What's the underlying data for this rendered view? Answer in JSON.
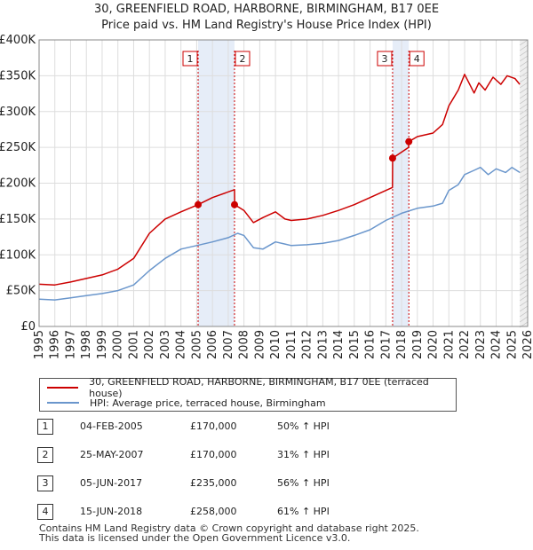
{
  "title_line1": "30, GREENFIELD ROAD, HARBORNE, BIRMINGHAM, B17 0EE",
  "title_line2": "Price paid vs. HM Land Registry's House Price Index (HPI)",
  "colors": {
    "property": "#cc0000",
    "hpi": "#6a96cc",
    "band": "#e6edf8",
    "grid": "#dddddd"
  },
  "chart_data": {
    "type": "line",
    "xlim": [
      1995,
      2026
    ],
    "ylim": [
      0,
      400000
    ],
    "ytick_values": [
      0,
      50000,
      100000,
      150000,
      200000,
      250000,
      300000,
      350000,
      400000
    ],
    "yticks": [
      "£0",
      "£50K",
      "£100K",
      "£150K",
      "£200K",
      "£250K",
      "£300K",
      "£350K",
      "£400K"
    ],
    "xticks": [
      "1995",
      "1996",
      "1997",
      "1998",
      "1999",
      "2000",
      "2001",
      "2002",
      "2003",
      "2004",
      "2005",
      "2006",
      "2007",
      "2008",
      "2009",
      "2010",
      "2011",
      "2012",
      "2013",
      "2014",
      "2015",
      "2016",
      "2017",
      "2018",
      "2019",
      "2020",
      "2021",
      "2022",
      "2023",
      "2024",
      "2025",
      "2026"
    ],
    "series": [
      {
        "name": "30, GREENFIELD ROAD, HARBORNE, BIRMINGHAM, B17 0EE (terraced house)",
        "color": "#cc0000",
        "x": [
          1995,
          1996,
          1997,
          1998,
          1999,
          2000,
          2001,
          2002,
          2003,
          2004,
          2005.09,
          2006,
          2007.4,
          2007.41,
          2008,
          2008.6,
          2009.2,
          2010,
          2010.6,
          2011,
          2012,
          2013,
          2014,
          2015,
          2016,
          2017.42,
          2017.43,
          2018.45,
          2018.46,
          2019,
          2020,
          2020.6,
          2021,
          2021.6,
          2022,
          2022.6,
          2022.9,
          2023.3,
          2023.8,
          2024.3,
          2024.7,
          2025.2,
          2025.5
        ],
        "y": [
          59000,
          58000,
          62000,
          67000,
          72000,
          80000,
          95000,
          130000,
          150000,
          160000,
          170000,
          180000,
          191000,
          170000,
          162000,
          145000,
          152000,
          160000,
          150000,
          148000,
          150000,
          155000,
          162000,
          170000,
          180000,
          194000,
          235000,
          250000,
          258000,
          265000,
          270000,
          282000,
          308000,
          330000,
          352000,
          326000,
          340000,
          330000,
          348000,
          338000,
          350000,
          346000,
          338000
        ]
      },
      {
        "name": "HPI: Average price, terraced house, Birmingham",
        "color": "#6a96cc",
        "x": [
          1995,
          1996,
          1997,
          1998,
          1999,
          2000,
          2001,
          2002,
          2003,
          2004,
          2005,
          2006,
          2007,
          2007.6,
          2008,
          2008.6,
          2009.2,
          2010,
          2010.6,
          2011,
          2012,
          2013,
          2014,
          2015,
          2016,
          2017,
          2018,
          2019,
          2020,
          2020.6,
          2021,
          2021.6,
          2022,
          2022.6,
          2023,
          2023.5,
          2024,
          2024.6,
          2025,
          2025.5
        ],
        "y": [
          38000,
          37000,
          40000,
          43000,
          46000,
          50000,
          58000,
          78000,
          95000,
          108000,
          113000,
          118000,
          124000,
          130000,
          127000,
          110000,
          108000,
          118000,
          115000,
          113000,
          114000,
          116000,
          120000,
          127000,
          135000,
          148000,
          158000,
          165000,
          168000,
          172000,
          190000,
          198000,
          212000,
          218000,
          222000,
          212000,
          220000,
          215000,
          222000,
          215000
        ]
      }
    ],
    "transactions": [
      {
        "label": "1",
        "x": 2005.09,
        "y": 170000,
        "date": "04-FEB-2005",
        "price": "£170,000",
        "hpi_delta": "50% ↑ HPI"
      },
      {
        "label": "2",
        "x": 2007.4,
        "y": 170000,
        "date": "25-MAY-2007",
        "price": "£170,000",
        "hpi_delta": "31% ↑ HPI"
      },
      {
        "label": "3",
        "x": 2017.43,
        "y": 235000,
        "date": "05-JUN-2017",
        "price": "£235,000",
        "hpi_delta": "56% ↑ HPI"
      },
      {
        "label": "4",
        "x": 2018.46,
        "y": 258000,
        "date": "15-JUN-2018",
        "price": "£258,000",
        "hpi_delta": "61% ↑ HPI"
      }
    ],
    "shaded_ranges": [
      [
        2005.09,
        2007.4
      ],
      [
        2017.43,
        2018.46
      ]
    ],
    "forecast_start": 2025.5,
    "legend": {
      "property": "30, GREENFIELD ROAD, HARBORNE, BIRMINGHAM, B17 0EE (terraced house)",
      "hpi": "HPI: Average price, terraced house, Birmingham"
    }
  },
  "footer_line1": "Contains HM Land Registry data © Crown copyright and database right 2025.",
  "footer_line2": "This data is licensed under the Open Government Licence v3.0."
}
